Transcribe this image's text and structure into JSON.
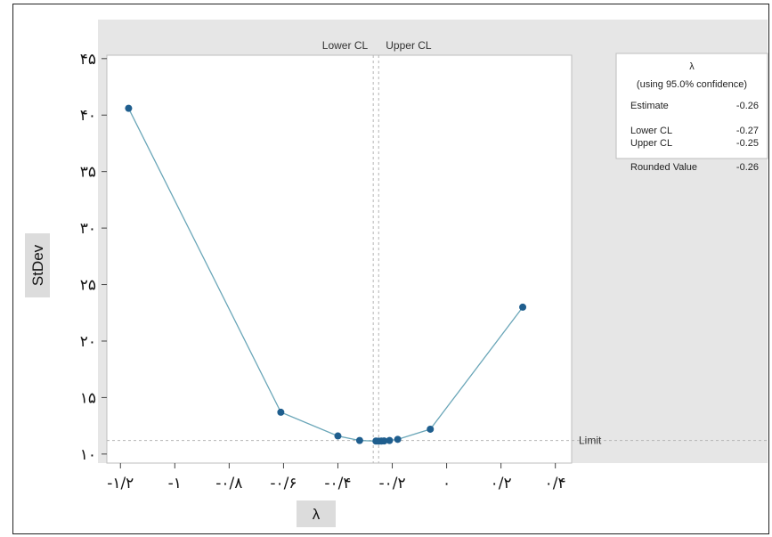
{
  "chart_data": {
    "type": "line",
    "xlabel": "λ",
    "ylabel": "StDev",
    "x_tick_labels": [
      "-۱/۲",
      "-۱",
      "-۰/۸",
      "-۰/۶",
      "-۰/۴",
      "-۰/۲",
      "۰",
      "۰/۲",
      "۰/۴"
    ],
    "x_ticks": [
      -1.2,
      -1.0,
      -0.8,
      -0.6,
      -0.4,
      -0.2,
      0.0,
      0.2,
      0.4
    ],
    "y_tick_labels": [
      "۱۰",
      "۱۵",
      "۲۰",
      "۲۵",
      "۳۰",
      "۳۵",
      "۴۰",
      "۴۵"
    ],
    "y_ticks": [
      10,
      15,
      20,
      25,
      30,
      35,
      40,
      45
    ],
    "xlim": [
      -1.25,
      0.46
    ],
    "ylim": [
      9.2,
      45.3
    ],
    "series": [
      {
        "x": [
          -1.17,
          -0.61,
          -0.4,
          -0.32,
          -0.26,
          -0.25,
          -0.24,
          -0.23,
          -0.21,
          -0.18,
          -0.06,
          0.28
        ],
        "y": [
          40.6,
          13.7,
          11.6,
          11.2,
          11.15,
          11.14,
          11.15,
          11.16,
          11.2,
          11.3,
          12.2,
          23.0
        ]
      }
    ],
    "reference_lines": {
      "lower_cl": {
        "label": "Lower CL",
        "x": -0.27
      },
      "upper_cl": {
        "label": "Upper CL",
        "x": -0.25
      },
      "limit": {
        "label": "Limit",
        "y": 11.2
      }
    },
    "legend": {
      "position": "top-right",
      "title": "λ",
      "subtitle": "(using 95.0% confidence)",
      "rows": [
        {
          "label": "Estimate",
          "value": "-0.26"
        },
        {
          "label": "Lower CL",
          "value": "-0.27"
        },
        {
          "label": "Upper CL",
          "value": "-0.25"
        },
        {
          "label": "Rounded Value",
          "value": "-0.26"
        }
      ]
    },
    "colors": {
      "series": "#1f5e8e",
      "line": "#6aa6b8",
      "panel": "#e6e6e6",
      "ref": "#b5b5b5"
    }
  }
}
